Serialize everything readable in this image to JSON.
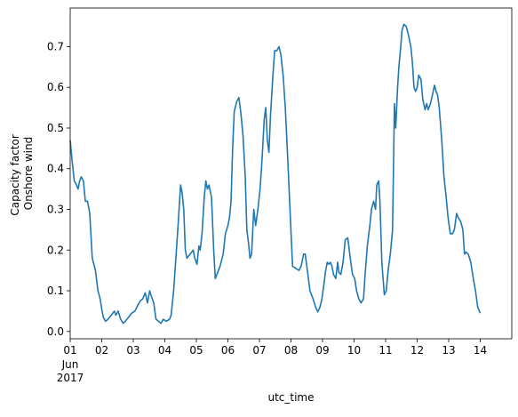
{
  "chart_data": {
    "type": "line",
    "xlabel": "utc_time",
    "ylabel_lines": [
      "Capacity factor",
      "Onshore wind"
    ],
    "x_range": [
      "2017-06-01T00:00",
      "2017-06-15T00:00"
    ],
    "ylim": [
      -0.018,
      0.795
    ],
    "x_ticks": [
      {
        "day": 1,
        "label": "01",
        "sub": [
          "Jun",
          "2017"
        ]
      },
      {
        "day": 2,
        "label": "02"
      },
      {
        "day": 3,
        "label": "03"
      },
      {
        "day": 4,
        "label": "04"
      },
      {
        "day": 5,
        "label": "05"
      },
      {
        "day": 6,
        "label": "06"
      },
      {
        "day": 7,
        "label": "07"
      },
      {
        "day": 8,
        "label": "08"
      },
      {
        "day": 9,
        "label": "09"
      },
      {
        "day": 10,
        "label": "10"
      },
      {
        "day": 11,
        "label": "11"
      },
      {
        "day": 12,
        "label": "12"
      },
      {
        "day": 13,
        "label": "13"
      },
      {
        "day": 14,
        "label": "14"
      }
    ],
    "y_ticks": [
      {
        "value": 0.0,
        "label": "0.0"
      },
      {
        "value": 0.1,
        "label": "0.1"
      },
      {
        "value": 0.2,
        "label": "0.2"
      },
      {
        "value": 0.3,
        "label": "0.3"
      },
      {
        "value": 0.4,
        "label": "0.4"
      },
      {
        "value": 0.5,
        "label": "0.5"
      },
      {
        "value": 0.6,
        "label": "0.6"
      },
      {
        "value": 0.7,
        "label": "0.7"
      }
    ],
    "grid": false,
    "series": [
      {
        "color": "#1f77b4",
        "points": [
          [
            1.0,
            0.47
          ],
          [
            1.06,
            0.42
          ],
          [
            1.13,
            0.37
          ],
          [
            1.2,
            0.36
          ],
          [
            1.25,
            0.35
          ],
          [
            1.3,
            0.37
          ],
          [
            1.35,
            0.38
          ],
          [
            1.42,
            0.37
          ],
          [
            1.48,
            0.32
          ],
          [
            1.55,
            0.32
          ],
          [
            1.62,
            0.29
          ],
          [
            1.7,
            0.18
          ],
          [
            1.8,
            0.15
          ],
          [
            1.88,
            0.1
          ],
          [
            1.95,
            0.08
          ],
          [
            2.0,
            0.055
          ],
          [
            2.05,
            0.035
          ],
          [
            2.12,
            0.025
          ],
          [
            2.2,
            0.03
          ],
          [
            2.3,
            0.04
          ],
          [
            2.4,
            0.05
          ],
          [
            2.45,
            0.04
          ],
          [
            2.52,
            0.05
          ],
          [
            2.6,
            0.03
          ],
          [
            2.68,
            0.02
          ],
          [
            2.75,
            0.025
          ],
          [
            2.85,
            0.035
          ],
          [
            2.95,
            0.045
          ],
          [
            3.05,
            0.05
          ],
          [
            3.15,
            0.065
          ],
          [
            3.22,
            0.075
          ],
          [
            3.3,
            0.08
          ],
          [
            3.38,
            0.095
          ],
          [
            3.45,
            0.07
          ],
          [
            3.52,
            0.1
          ],
          [
            3.58,
            0.085
          ],
          [
            3.65,
            0.07
          ],
          [
            3.72,
            0.03
          ],
          [
            3.8,
            0.025
          ],
          [
            3.88,
            0.02
          ],
          [
            3.95,
            0.03
          ],
          [
            4.05,
            0.025
          ],
          [
            4.15,
            0.03
          ],
          [
            4.2,
            0.04
          ],
          [
            4.28,
            0.1
          ],
          [
            4.35,
            0.18
          ],
          [
            4.42,
            0.26
          ],
          [
            4.5,
            0.36
          ],
          [
            4.55,
            0.34
          ],
          [
            4.6,
            0.3
          ],
          [
            4.65,
            0.2
          ],
          [
            4.7,
            0.18
          ],
          [
            4.8,
            0.19
          ],
          [
            4.9,
            0.2
          ],
          [
            4.95,
            0.18
          ],
          [
            5.02,
            0.165
          ],
          [
            5.08,
            0.21
          ],
          [
            5.12,
            0.2
          ],
          [
            5.18,
            0.24
          ],
          [
            5.25,
            0.33
          ],
          [
            5.3,
            0.37
          ],
          [
            5.35,
            0.35
          ],
          [
            5.4,
            0.36
          ],
          [
            5.48,
            0.33
          ],
          [
            5.55,
            0.2
          ],
          [
            5.6,
            0.13
          ],
          [
            5.65,
            0.14
          ],
          [
            5.75,
            0.16
          ],
          [
            5.85,
            0.19
          ],
          [
            5.92,
            0.24
          ],
          [
            6.0,
            0.26
          ],
          [
            6.05,
            0.28
          ],
          [
            6.1,
            0.32
          ],
          [
            6.15,
            0.45
          ],
          [
            6.2,
            0.54
          ],
          [
            6.28,
            0.565
          ],
          [
            6.35,
            0.575
          ],
          [
            6.42,
            0.53
          ],
          [
            6.48,
            0.48
          ],
          [
            6.55,
            0.38
          ],
          [
            6.6,
            0.25
          ],
          [
            6.65,
            0.22
          ],
          [
            6.7,
            0.18
          ],
          [
            6.75,
            0.19
          ],
          [
            6.82,
            0.3
          ],
          [
            6.88,
            0.26
          ],
          [
            6.95,
            0.3
          ],
          [
            7.02,
            0.35
          ],
          [
            7.08,
            0.42
          ],
          [
            7.15,
            0.52
          ],
          [
            7.2,
            0.55
          ],
          [
            7.25,
            0.47
          ],
          [
            7.3,
            0.44
          ],
          [
            7.35,
            0.53
          ],
          [
            7.42,
            0.62
          ],
          [
            7.48,
            0.69
          ],
          [
            7.55,
            0.69
          ],
          [
            7.62,
            0.7
          ],
          [
            7.68,
            0.68
          ],
          [
            7.75,
            0.63
          ],
          [
            7.82,
            0.55
          ],
          [
            7.9,
            0.42
          ],
          [
            7.98,
            0.28
          ],
          [
            8.05,
            0.16
          ],
          [
            8.15,
            0.155
          ],
          [
            8.25,
            0.15
          ],
          [
            8.32,
            0.16
          ],
          [
            8.4,
            0.19
          ],
          [
            8.45,
            0.19
          ],
          [
            8.52,
            0.15
          ],
          [
            8.6,
            0.1
          ],
          [
            8.7,
            0.08
          ],
          [
            8.78,
            0.06
          ],
          [
            8.85,
            0.048
          ],
          [
            8.92,
            0.06
          ],
          [
            8.98,
            0.08
          ],
          [
            9.05,
            0.12
          ],
          [
            9.1,
            0.15
          ],
          [
            9.15,
            0.17
          ],
          [
            9.2,
            0.165
          ],
          [
            9.25,
            0.17
          ],
          [
            9.3,
            0.16
          ],
          [
            9.35,
            0.14
          ],
          [
            9.42,
            0.13
          ],
          [
            9.48,
            0.17
          ],
          [
            9.52,
            0.145
          ],
          [
            9.58,
            0.14
          ],
          [
            9.65,
            0.17
          ],
          [
            9.72,
            0.225
          ],
          [
            9.8,
            0.23
          ],
          [
            9.88,
            0.18
          ],
          [
            9.95,
            0.14
          ],
          [
            10.02,
            0.13
          ],
          [
            10.08,
            0.1
          ],
          [
            10.15,
            0.08
          ],
          [
            10.22,
            0.07
          ],
          [
            10.3,
            0.08
          ],
          [
            10.35,
            0.14
          ],
          [
            10.42,
            0.21
          ],
          [
            10.5,
            0.26
          ],
          [
            10.55,
            0.3
          ],
          [
            10.62,
            0.32
          ],
          [
            10.68,
            0.3
          ],
          [
            10.72,
            0.36
          ],
          [
            10.78,
            0.37
          ],
          [
            10.82,
            0.32
          ],
          [
            10.88,
            0.17
          ],
          [
            10.92,
            0.13
          ],
          [
            10.96,
            0.09
          ],
          [
            11.02,
            0.1
          ],
          [
            11.08,
            0.15
          ],
          [
            11.15,
            0.19
          ],
          [
            11.22,
            0.25
          ],
          [
            11.28,
            0.56
          ],
          [
            11.32,
            0.5
          ],
          [
            11.38,
            0.6
          ],
          [
            11.42,
            0.65
          ],
          [
            11.48,
            0.7
          ],
          [
            11.52,
            0.74
          ],
          [
            11.58,
            0.755
          ],
          [
            11.65,
            0.75
          ],
          [
            11.72,
            0.73
          ],
          [
            11.8,
            0.7
          ],
          [
            11.85,
            0.66
          ],
          [
            11.9,
            0.6
          ],
          [
            11.95,
            0.59
          ],
          [
            12.0,
            0.6
          ],
          [
            12.05,
            0.63
          ],
          [
            12.12,
            0.62
          ],
          [
            12.18,
            0.57
          ],
          [
            12.25,
            0.545
          ],
          [
            12.3,
            0.56
          ],
          [
            12.35,
            0.545
          ],
          [
            12.42,
            0.56
          ],
          [
            12.48,
            0.58
          ],
          [
            12.55,
            0.605
          ],
          [
            12.6,
            0.59
          ],
          [
            12.65,
            0.58
          ],
          [
            12.7,
            0.55
          ],
          [
            12.78,
            0.47
          ],
          [
            12.85,
            0.38
          ],
          [
            12.92,
            0.33
          ],
          [
            12.98,
            0.28
          ],
          [
            13.05,
            0.24
          ],
          [
            13.12,
            0.24
          ],
          [
            13.18,
            0.25
          ],
          [
            13.25,
            0.29
          ],
          [
            13.3,
            0.28
          ],
          [
            13.38,
            0.27
          ],
          [
            13.45,
            0.25
          ],
          [
            13.5,
            0.19
          ],
          [
            13.55,
            0.195
          ],
          [
            13.62,
            0.19
          ],
          [
            13.7,
            0.17
          ],
          [
            13.78,
            0.13
          ],
          [
            13.85,
            0.1
          ],
          [
            13.92,
            0.06
          ],
          [
            14.0,
            0.045
          ]
        ]
      }
    ]
  }
}
